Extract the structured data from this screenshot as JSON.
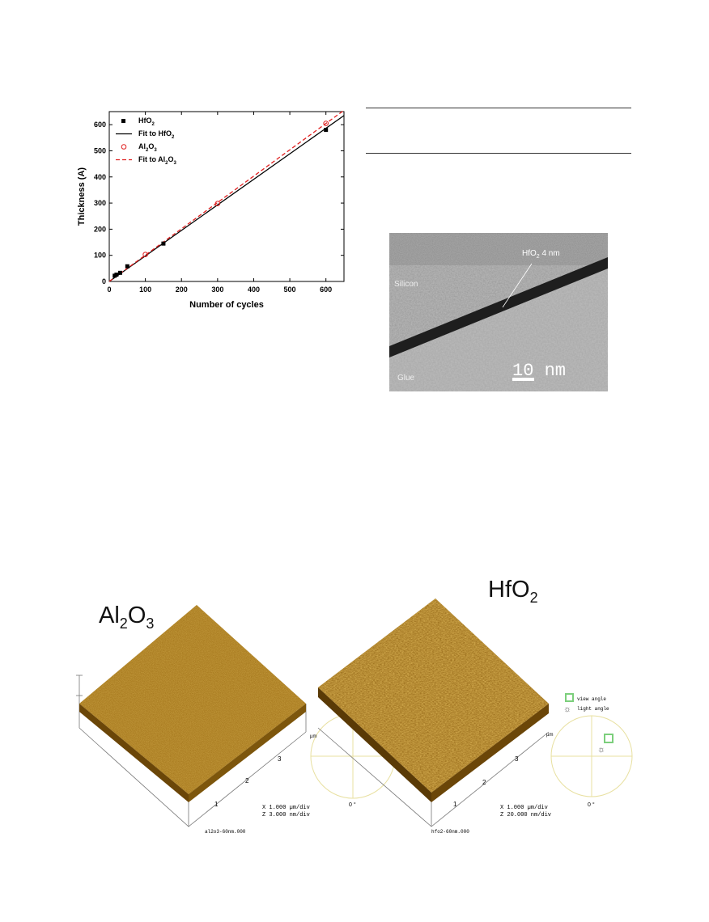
{
  "chart_data": {
    "type": "scatter",
    "xlabel": "Number of cycles",
    "ylabel": "Thickness (A)",
    "xlim": [
      0,
      650
    ],
    "ylim": [
      0,
      650
    ],
    "xticks": [
      0,
      100,
      200,
      300,
      400,
      500,
      600
    ],
    "yticks": [
      0,
      100,
      200,
      300,
      400,
      500,
      600
    ],
    "legend_position": "top-left",
    "series": [
      {
        "name": "HfO2",
        "marker": "filled-square",
        "color": "#000000",
        "x": [
          15,
          20,
          30,
          50,
          150,
          600
        ],
        "y": [
          22,
          26,
          33,
          58,
          145,
          580
        ]
      },
      {
        "name": "Fit to HfO2",
        "style": "solid-line",
        "color": "#000000",
        "x": [
          0,
          650
        ],
        "y": [
          0,
          635
        ]
      },
      {
        "name": "Al2O3",
        "marker": "open-circle",
        "color": "#e02020",
        "x": [
          100,
          300,
          600
        ],
        "y": [
          103,
          298,
          605
        ]
      },
      {
        "name": "Fit to Al2O3",
        "style": "dashed-line",
        "color": "#e02020",
        "x": [
          0,
          650
        ],
        "y": [
          0,
          655
        ]
      }
    ],
    "legend_entries": [
      {
        "base": "HfO",
        "sub": "2",
        "tail": ""
      },
      {
        "base": "Fit to HfO",
        "sub": "2",
        "tail": ""
      },
      {
        "base": "Al",
        "sub": "2",
        "mid": "O",
        "sub2": "3"
      },
      {
        "base": "Fit to Al",
        "sub": "2",
        "mid": "O",
        "sub2": "3"
      }
    ]
  },
  "tem": {
    "label_silicon": "Silicon",
    "label_glue": "Glue",
    "annotation": "HfO",
    "annotation_sub": "2",
    "annotation_tail": " 4 nm",
    "scale": "10 nm"
  },
  "afm": {
    "left_title": "Al",
    "left_title_sub1": "2",
    "left_title_mid": "O",
    "left_title_sub2": "3",
    "right_title": "HfO",
    "right_title_sub": "2",
    "left_file": "al2o3-60nm.000",
    "right_file": "hfo2-60nm.000",
    "left_scale_x": "X 1.000 µm/div",
    "left_scale_z": "Z 3.000 nm/div",
    "right_scale_x": "X 1.000 µm/div",
    "right_scale_z": "Z 20.000 nm/div",
    "axis_ticks": [
      "1",
      "2",
      "3"
    ],
    "axis_unit": "µm",
    "angle_label": "0 °",
    "view_angle": "view angle",
    "light_angle": "light angle",
    "colors": {
      "surface_dark": "#6b4608",
      "surface_mid": "#a8730f",
      "surface_light": "#d4a030"
    }
  }
}
